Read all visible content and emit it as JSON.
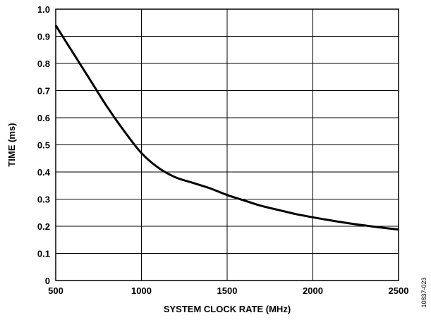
{
  "chart_data": {
    "type": "line",
    "xlabel": "SYSTEM CLOCK RATE (MHz)",
    "ylabel": "TIME (ms)",
    "xlim": [
      500,
      2500
    ],
    "ylim": [
      0,
      1.0
    ],
    "x_ticks": [
      "500",
      "1000",
      "1500",
      "2000",
      "2500"
    ],
    "y_ticks": [
      "0",
      "0.1",
      "0.2",
      "0.3",
      "0.4",
      "0.5",
      "0.6",
      "0.7",
      "0.8",
      "0.9",
      "1.0"
    ],
    "grid": true,
    "series": [
      {
        "x": [
          500,
          600,
          700,
          800,
          900,
          1000,
          1100,
          1200,
          1300,
          1400,
          1500,
          1600,
          1700,
          1800,
          1900,
          2000,
          2100,
          2200,
          2300,
          2400,
          2500
        ],
        "y": [
          0.94,
          0.84,
          0.74,
          0.64,
          0.55,
          0.47,
          0.415,
          0.38,
          0.36,
          0.34,
          0.315,
          0.295,
          0.275,
          0.26,
          0.245,
          0.233,
          0.222,
          0.212,
          0.203,
          0.195,
          0.188
        ]
      }
    ],
    "figure_id": "10837-023"
  }
}
